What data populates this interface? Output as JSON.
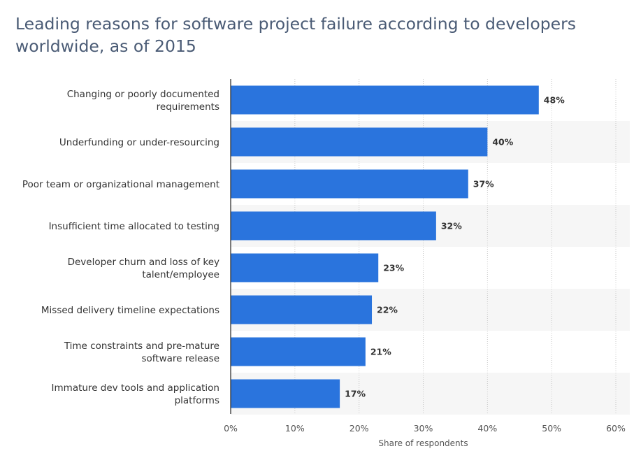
{
  "chart_data": {
    "type": "bar",
    "orientation": "horizontal",
    "title": "Leading reasons for software project failure according to developers worldwide, as of 2015",
    "categories": [
      [
        "Changing or poorly documented",
        "requirements"
      ],
      [
        "Underfunding or under-resourcing"
      ],
      [
        "Poor team or organizational management"
      ],
      [
        "Insufficient time allocated to testing"
      ],
      [
        "Developer churn and loss of key",
        "talent/employee"
      ],
      [
        "Missed delivery timeline expectations"
      ],
      [
        "Time constraints and pre-mature",
        "software release"
      ],
      [
        "Immature dev tools and application",
        "platforms"
      ]
    ],
    "values": [
      48,
      40,
      37,
      32,
      23,
      22,
      21,
      17
    ],
    "value_labels": [
      "48%",
      "40%",
      "37%",
      "32%",
      "23%",
      "22%",
      "21%",
      "17%"
    ],
    "xlabel": "Share of respondents",
    "ylabel": "",
    "xlim": [
      0,
      60
    ],
    "ticks": [
      0,
      10,
      20,
      30,
      40,
      50,
      60
    ],
    "tick_labels": [
      "0%",
      "10%",
      "20%",
      "30%",
      "40%",
      "50%",
      "60%"
    ],
    "grid": true,
    "colors": {
      "bar": "#2a74dd",
      "title": "#4a5b75",
      "band": "#f6f6f6",
      "grid": "#c8c8c8",
      "axis": "#333333"
    }
  }
}
